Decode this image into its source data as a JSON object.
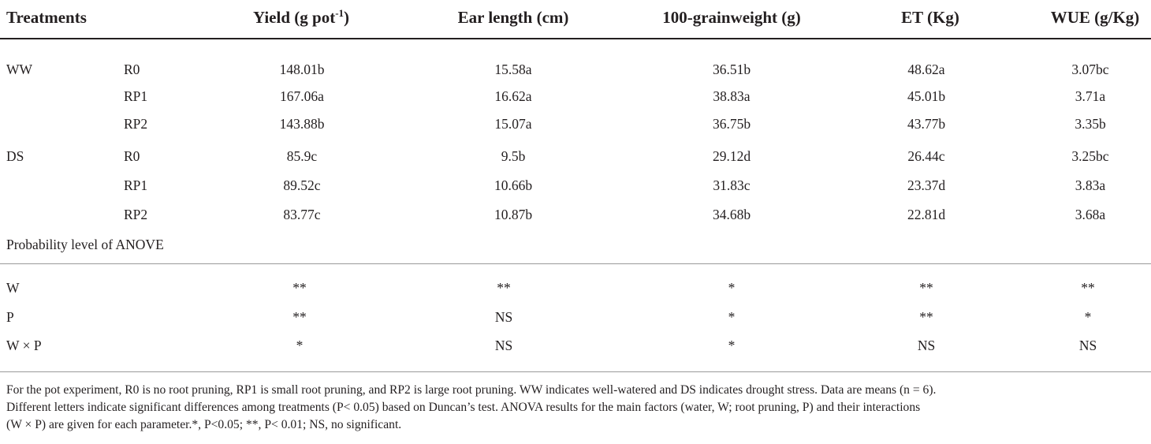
{
  "headers": {
    "treatments": "Treatments",
    "yield_main": "Yield (g pot",
    "yield_sup": "-1",
    "yield_tail": ")",
    "ear_length": "Ear length (cm)",
    "grain_weight": "100-grainweight (g)",
    "et": "ET (Kg)",
    "wue": "WUE (g/Kg)"
  },
  "rows": [
    {
      "group": "WW",
      "sub": "R0",
      "yield": "148.01b",
      "ear": "15.58a",
      "grain": "36.51b",
      "et": "48.62a",
      "wue": "3.07bc"
    },
    {
      "group": "",
      "sub": "RP1",
      "yield": "167.06a",
      "ear": "16.62a",
      "grain": "38.83a",
      "et": "45.01b",
      "wue": "3.71a"
    },
    {
      "group": "",
      "sub": "RP2",
      "yield": "143.88b",
      "ear": "15.07a",
      "grain": "36.75b",
      "et": "43.77b",
      "wue": "3.35b"
    },
    {
      "group": "DS",
      "sub": "R0",
      "yield": "85.9c",
      "ear": "9.5b",
      "grain": "29.12d",
      "et": "26.44c",
      "wue": "3.25bc"
    },
    {
      "group": "",
      "sub": "RP1",
      "yield": "89.52c",
      "ear": "10.66b",
      "grain": "31.83c",
      "et": "23.37d",
      "wue": "3.83a"
    },
    {
      "group": "",
      "sub": "RP2",
      "yield": "83.77c",
      "ear": "10.87b",
      "grain": "34.68b",
      "et": "22.81d",
      "wue": "3.68a"
    }
  ],
  "prob_label": "Probability level of ANOVE",
  "anova": [
    {
      "factor": "W",
      "yield": "**",
      "ear": "**",
      "grain": "*",
      "et": "**",
      "wue": "**"
    },
    {
      "factor": "P",
      "yield": "**",
      "ear": "NS",
      "grain": "*",
      "et": "**",
      "wue": "*"
    },
    {
      "factor": "W × P",
      "yield": "*",
      "ear": "NS",
      "grain": "*",
      "et": "NS",
      "wue": "NS"
    }
  ],
  "footnote": {
    "line1": "For the pot experiment, R0 is no root pruning, RP1 is small root pruning, and RP2 is large root pruning. WW indicates well-watered and DS indicates drought stress. Data are means (n = 6).",
    "line2": "Different letters indicate significant differences among treatments (P< 0.05) based on Duncan’s test. ANOVA results for the main factors (water, W; root pruning, P) and their interactions",
    "line3": "(W × P) are given for each parameter.*, P<0.05; **, P< 0.01; NS, no significant."
  }
}
